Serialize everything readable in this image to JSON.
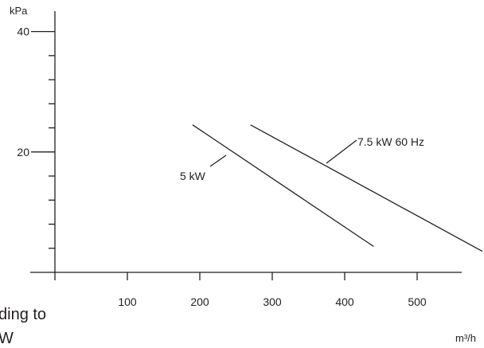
{
  "chart_data": {
    "type": "line",
    "xlabel": "m³/h",
    "ylabel": "kPa",
    "xlim": [
      -10,
      570
    ],
    "ylim": [
      0,
      44
    ],
    "x_ticks": [
      0,
      100,
      200,
      300,
      400,
      500
    ],
    "x_tick_labels": [
      "",
      "100",
      "200",
      "300",
      "400",
      "500"
    ],
    "y_ticks": [
      2,
      4,
      6,
      8,
      10,
      12,
      14,
      16,
      18,
      20,
      22,
      24,
      26,
      28,
      30,
      32,
      34,
      36,
      38,
      40
    ],
    "y_tick_labels": {
      "20": "20",
      "40": "40"
    },
    "grid": false,
    "series": [
      {
        "name": "5 kW",
        "x": [
          190,
          440
        ],
        "y": [
          24.5,
          4.3
        ]
      },
      {
        "name": "7.5 kW 60 Hz",
        "x": [
          270,
          590
        ],
        "y": [
          24.5,
          3.5
        ]
      }
    ]
  },
  "cut_text": [
    "ding to",
    "W"
  ]
}
